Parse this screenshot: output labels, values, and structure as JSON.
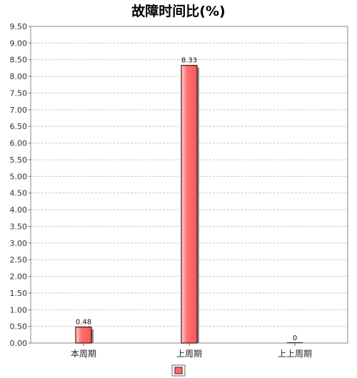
{
  "chart_data": {
    "type": "bar",
    "title": "故障时间比(%)",
    "xlabel": "",
    "ylabel": "",
    "categories": [
      "本周期",
      "上周期",
      "上上周期"
    ],
    "series": [
      {
        "values": [
          0.48,
          8.33,
          0
        ],
        "color": "#ff6b6b"
      }
    ],
    "data_labels": [
      "0.48",
      "8.33",
      "0"
    ],
    "ylim": [
      0,
      9.5
    ],
    "yticks": [
      "0.00",
      "0.50",
      "1.00",
      "1.50",
      "2.00",
      "2.50",
      "3.00",
      "3.50",
      "4.00",
      "4.50",
      "5.00",
      "5.50",
      "6.00",
      "6.50",
      "7.00",
      "7.50",
      "8.00",
      "8.50",
      "9.00",
      "9.50"
    ],
    "grid": true,
    "legend_position": "bottom"
  },
  "colors": {
    "bar_fill": "#ff6b6b",
    "bar_edge": "#4a1010",
    "bar_shadow": "#8a8a8a",
    "grid": "#c8c8c8",
    "plot_border": "#888888"
  }
}
